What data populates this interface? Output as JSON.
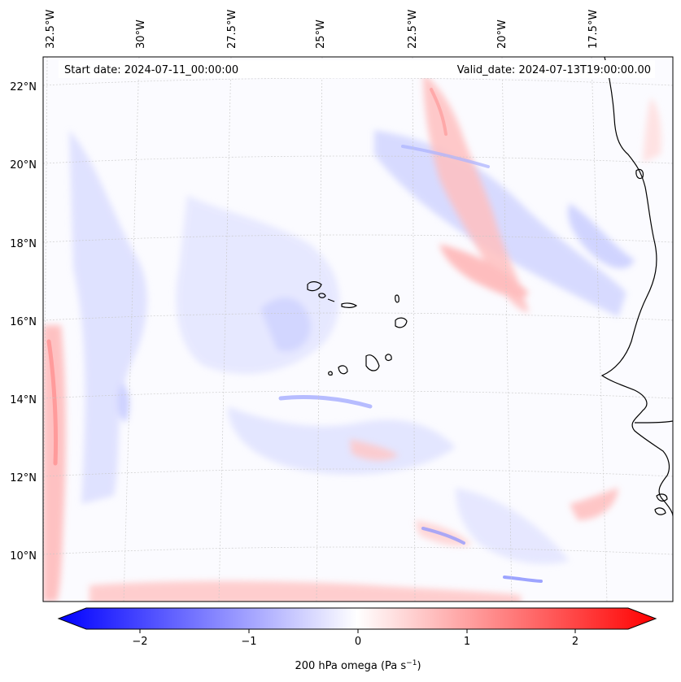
{
  "header": {
    "start_date": "Start date: 2024-07-11_00:00:00",
    "valid_date": "Valid_date: 2024-07-13T19:00:00.00"
  },
  "map": {
    "longitude_labels": [
      "32.5°W",
      "30°W",
      "27.5°W",
      "25°W",
      "22.5°W",
      "20°W",
      "17.5°W"
    ],
    "latitude_labels": [
      "22°N",
      "20°N",
      "18°N",
      "16°N",
      "14°N",
      "12°N",
      "10°N"
    ],
    "lon_range": [
      -32.6,
      -15.4
    ],
    "lat_range": [
      8.9,
      22.8
    ],
    "gridlines": true,
    "field_colors": {
      "negative": "#0000ff",
      "zero": "#ffffff",
      "positive": "#ff0000"
    }
  },
  "colorbar": {
    "ticks": [
      "−2",
      "−1",
      "0",
      "1",
      "2"
    ],
    "tick_values": [
      -2,
      -1,
      0,
      1,
      2
    ],
    "range": [
      -2.5,
      2.5
    ],
    "label_main": "200 hPa omega (Pa s",
    "label_exponent": "−1",
    "label_close": ")",
    "extend": "both"
  }
}
